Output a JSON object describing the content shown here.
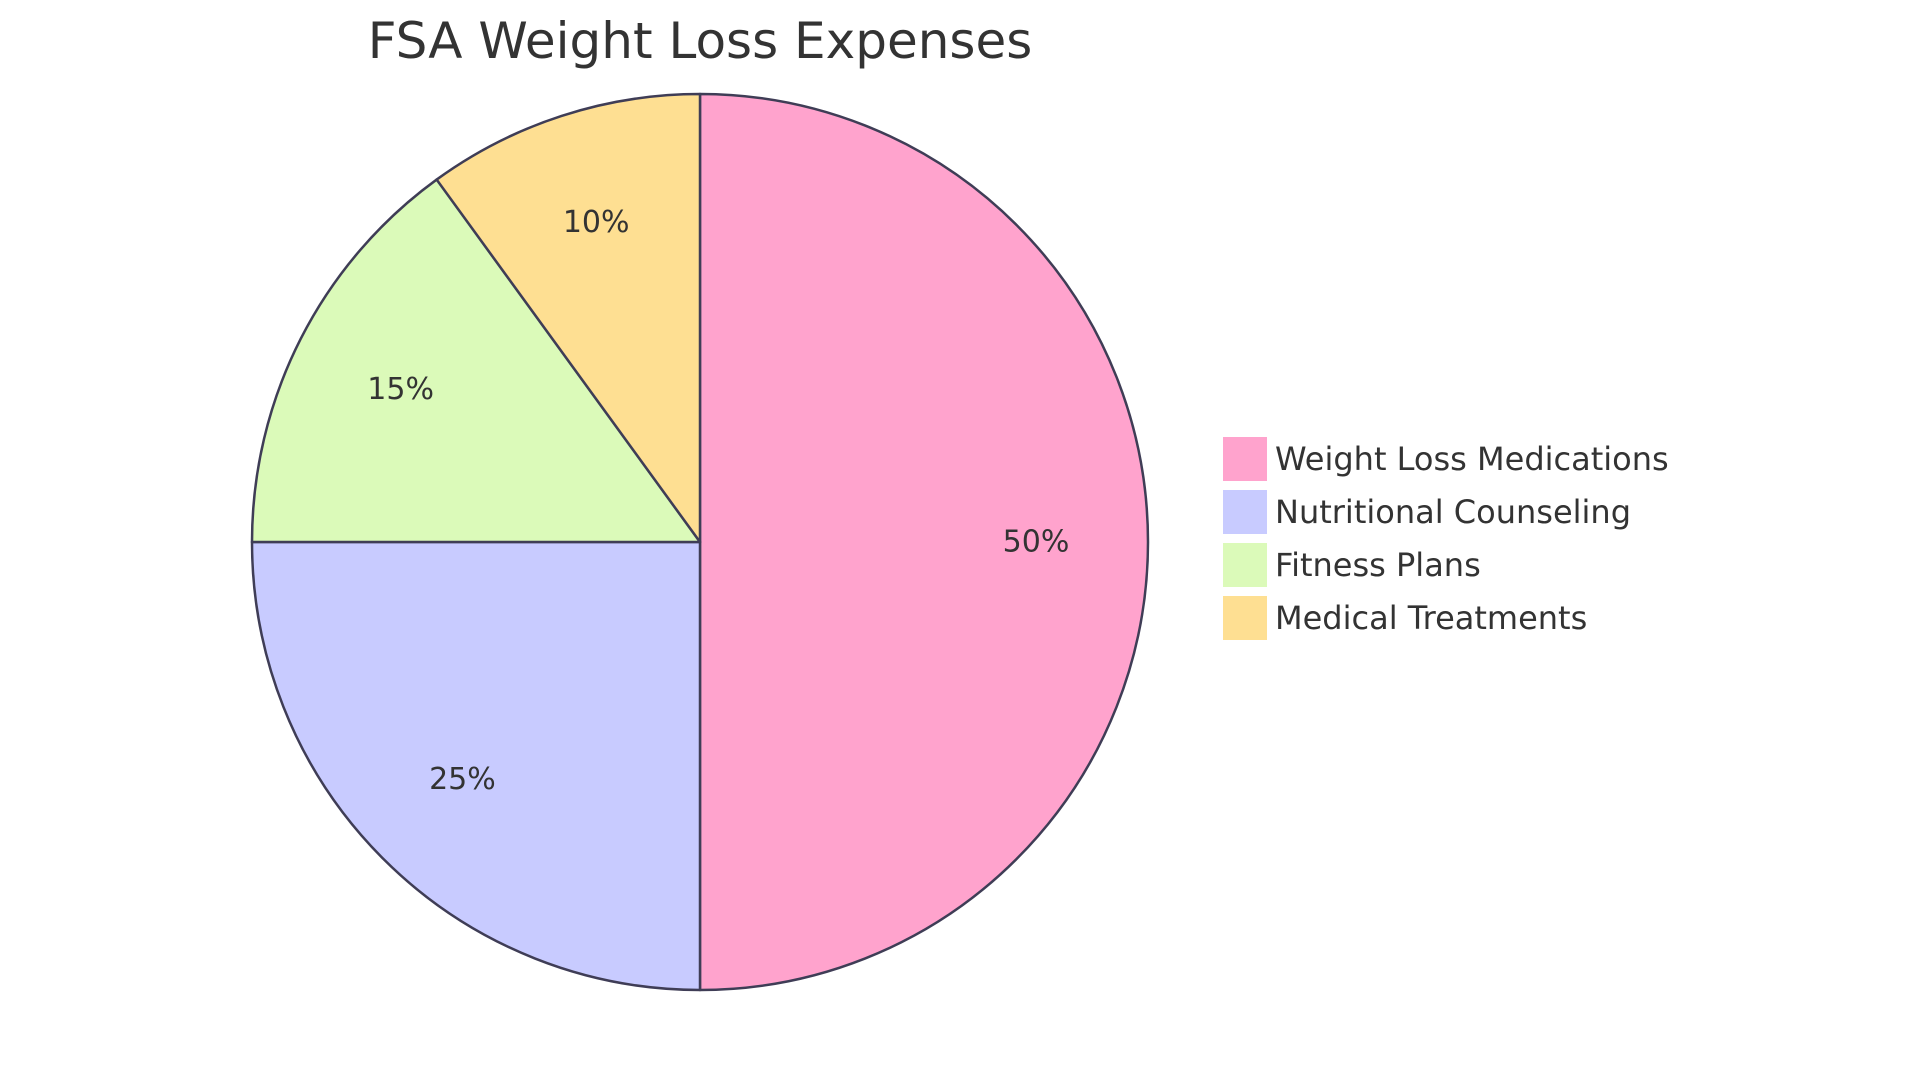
{
  "chart_data": {
    "type": "pie",
    "title": "FSA Weight Loss Expenses",
    "categories": [
      "Weight Loss Medications",
      "Nutritional Counseling",
      "Fitness Plans",
      "Medical Treatments"
    ],
    "values": [
      50,
      25,
      15,
      10
    ],
    "labels": [
      "50%",
      "25%",
      "15%",
      "10%"
    ],
    "colors": [
      "#FFA3CD",
      "#C8CBFF",
      "#DBFAB9",
      "#FEDF92"
    ],
    "stroke_color": "#3F3D56",
    "start_angle": "12 o'clock",
    "direction": "clockwise",
    "legend_position": "right"
  }
}
